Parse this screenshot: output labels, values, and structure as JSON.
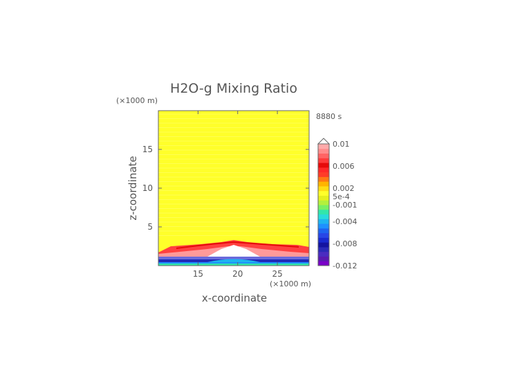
{
  "chart_data": {
    "type": "heatmap",
    "title": "H2O-g Mixing Ratio",
    "time_label": "8880 s",
    "xlabel": "x-coordinate",
    "ylabel": "z-coordinate",
    "x_unit": "(×1000 m)",
    "y_unit": "(×1000 m)",
    "xlim": [
      10,
      29
    ],
    "ylim": [
      0,
      20
    ],
    "x_ticks": [
      15,
      20,
      25
    ],
    "y_ticks": [
      5,
      10,
      15
    ],
    "colorbar": {
      "labels": [
        "0.01",
        "0.006",
        "0.002",
        "5e-4",
        "-0.001",
        "-0.004",
        "-0.008",
        "-0.012"
      ],
      "label_values": [
        0.01,
        0.006,
        0.002,
        0.0005,
        -0.001,
        -0.004,
        -0.008,
        -0.012
      ],
      "extend": "max",
      "colors": [
        "#7a00c8",
        "#5a1ab0",
        "#4a2cc0",
        "#2a2ab8",
        "#1414a0",
        "#1a2ad0",
        "#2846e6",
        "#1e64f0",
        "#1e90ff",
        "#1eb4f0",
        "#28dcdc",
        "#32e6aa",
        "#78f064",
        "#b4f03c",
        "#e6f01e",
        "#ffff2a",
        "#ffdc14",
        "#ffb400",
        "#ff7814",
        "#ff3c28",
        "#ff2828",
        "#e60a0a",
        "#ff3c3c",
        "#ff6464",
        "#ff8c8c",
        "#ffaaaa"
      ]
    },
    "field_description": [
      {
        "z_range": [
          2.6,
          20
        ],
        "value": 0.001,
        "color": "#ffff2a"
      },
      {
        "z_range": [
          1.3,
          3.2
        ],
        "value": 0.006,
        "color": "#ff5050"
      },
      {
        "z_range": [
          0.6,
          1.2
        ],
        "value": -0.008,
        "color": "#1e2ab8"
      },
      {
        "z_range": [
          0.2,
          0.6
        ],
        "value": -0.004,
        "color": "#1e90ff"
      },
      {
        "z_range": [
          0,
          0.2
        ],
        "value": -0.001,
        "color": "#32e6aa"
      }
    ]
  }
}
